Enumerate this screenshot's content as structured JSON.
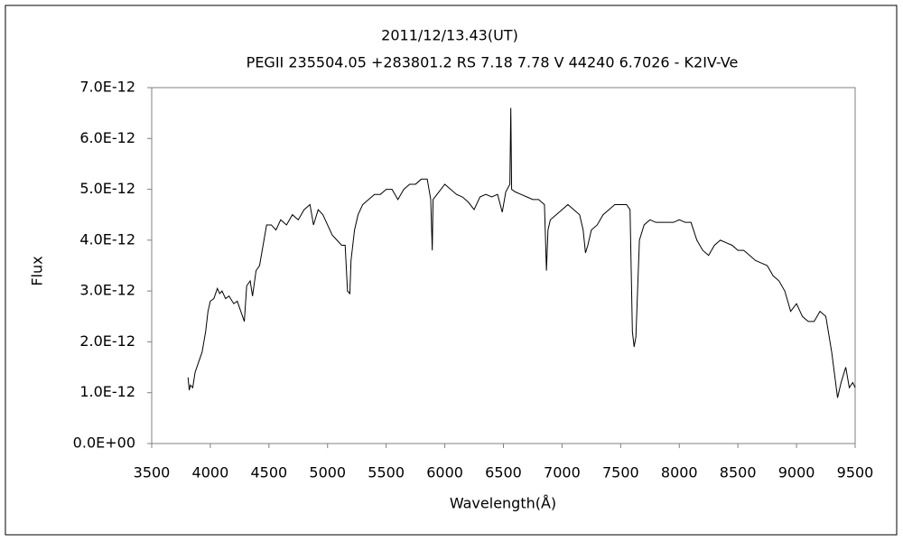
{
  "chart_data": {
    "type": "line",
    "title": "2011/12/13.43(UT)",
    "subtitle": "PEGII 235504.05 +283801.2 RS 7.18 7.78 V 44240 6.7026 - K2IV-Ve",
    "x_label": "Wavelength(Å)",
    "y_label": "Flux",
    "xlim": [
      3500,
      9500
    ],
    "xticks": [
      3500,
      4000,
      4500,
      5000,
      5500,
      6000,
      6500,
      7000,
      7500,
      8000,
      8500,
      9000,
      9500
    ],
    "ylim": [
      0,
      7e-12
    ],
    "yticks": [
      {
        "value": 0,
        "label": "0.0E+00"
      },
      {
        "value": 1e-12,
        "label": "1.0E-12"
      },
      {
        "value": 2e-12,
        "label": "2.0E-12"
      },
      {
        "value": 3e-12,
        "label": "3.0E-12"
      },
      {
        "value": 4e-12,
        "label": "4.0E-12"
      },
      {
        "value": 5e-12,
        "label": "5.0E-12"
      },
      {
        "value": 6e-12,
        "label": "6.0E-12"
      },
      {
        "value": 7e-12,
        "label": "7.0E-12"
      }
    ],
    "grid": false,
    "x": [
      3810,
      3820,
      3830,
      3850,
      3870,
      3900,
      3930,
      3960,
      3980,
      4000,
      4030,
      4060,
      4080,
      4100,
      4130,
      4160,
      4200,
      4230,
      4260,
      4290,
      4310,
      4340,
      4360,
      4390,
      4420,
      4450,
      4480,
      4520,
      4560,
      4600,
      4650,
      4700,
      4750,
      4800,
      4850,
      4880,
      4920,
      4960,
      5000,
      5040,
      5080,
      5120,
      5150,
      5170,
      5190,
      5200,
      5230,
      5260,
      5300,
      5350,
      5400,
      5450,
      5500,
      5550,
      5600,
      5650,
      5700,
      5750,
      5800,
      5850,
      5880,
      5893,
      5900,
      5950,
      6000,
      6050,
      6100,
      6150,
      6200,
      6250,
      6300,
      6350,
      6400,
      6450,
      6490,
      6520,
      6555,
      6563,
      6570,
      6600,
      6650,
      6700,
      6750,
      6800,
      6850,
      6867,
      6880,
      6900,
      6950,
      7000,
      7050,
      7100,
      7150,
      7180,
      7200,
      7220,
      7250,
      7300,
      7350,
      7400,
      7450,
      7500,
      7550,
      7580,
      7600,
      7615,
      7630,
      7660,
      7700,
      7750,
      7800,
      7850,
      7900,
      7950,
      8000,
      8050,
      8100,
      8150,
      8200,
      8250,
      8300,
      8350,
      8400,
      8450,
      8500,
      8550,
      8600,
      8650,
      8700,
      8750,
      8800,
      8850,
      8900,
      8950,
      9000,
      9050,
      9100,
      9150,
      9200,
      9250,
      9300,
      9350,
      9380,
      9420,
      9450,
      9480,
      9500
    ],
    "series": [
      {
        "color": "#000000",
        "values": [
          1.3e-12,
          1.05e-12,
          1.15e-12,
          1.1e-12,
          1.4e-12,
          1.6e-12,
          1.8e-12,
          2.2e-12,
          2.6e-12,
          2.8e-12,
          2.85e-12,
          3.05e-12,
          2.95e-12,
          3e-12,
          2.85e-12,
          2.9e-12,
          2.75e-12,
          2.8e-12,
          2.6e-12,
          2.4e-12,
          3.1e-12,
          3.2e-12,
          2.9e-12,
          3.4e-12,
          3.5e-12,
          3.9e-12,
          4.3e-12,
          4.3e-12,
          4.2e-12,
          4.4e-12,
          4.3e-12,
          4.5e-12,
          4.4e-12,
          4.6e-12,
          4.7e-12,
          4.3e-12,
          4.6e-12,
          4.5e-12,
          4.3e-12,
          4.1e-12,
          4e-12,
          3.9e-12,
          3.9e-12,
          3e-12,
          2.95e-12,
          3.6e-12,
          4.2e-12,
          4.5e-12,
          4.7e-12,
          4.8e-12,
          4.9e-12,
          4.9e-12,
          5e-12,
          5e-12,
          4.8e-12,
          5e-12,
          5.1e-12,
          5.1e-12,
          5.2e-12,
          5.2e-12,
          4.8e-12,
          3.8e-12,
          4.8e-12,
          4.95e-12,
          5.1e-12,
          5e-12,
          4.9e-12,
          4.85e-12,
          4.75e-12,
          4.6e-12,
          4.85e-12,
          4.9e-12,
          4.85e-12,
          4.9e-12,
          4.55e-12,
          4.95e-12,
          5.1e-12,
          6.6e-12,
          5e-12,
          4.95e-12,
          4.9e-12,
          4.85e-12,
          4.8e-12,
          4.8e-12,
          4.7e-12,
          3.4e-12,
          4.2e-12,
          4.4e-12,
          4.5e-12,
          4.6e-12,
          4.7e-12,
          4.6e-12,
          4.5e-12,
          4.2e-12,
          3.75e-12,
          3.9e-12,
          4.2e-12,
          4.3e-12,
          4.5e-12,
          4.6e-12,
          4.7e-12,
          4.7e-12,
          4.7e-12,
          4.6e-12,
          2.2e-12,
          1.9e-12,
          2.1e-12,
          4e-12,
          4.3e-12,
          4.4e-12,
          4.35e-12,
          4.35e-12,
          4.35e-12,
          4.35e-12,
          4.4e-12,
          4.35e-12,
          4.35e-12,
          4e-12,
          3.8e-12,
          3.7e-12,
          3.9e-12,
          4e-12,
          3.95e-12,
          3.9e-12,
          3.8e-12,
          3.8e-12,
          3.7e-12,
          3.6e-12,
          3.55e-12,
          3.5e-12,
          3.3e-12,
          3.2e-12,
          3e-12,
          2.6e-12,
          2.75e-12,
          2.5e-12,
          2.4e-12,
          2.4e-12,
          2.6e-12,
          2.5e-12,
          1.8e-12,
          9e-13,
          1.2e-12,
          1.5e-12,
          1.1e-12,
          1.2e-12,
          1.1e-12
        ]
      }
    ]
  }
}
